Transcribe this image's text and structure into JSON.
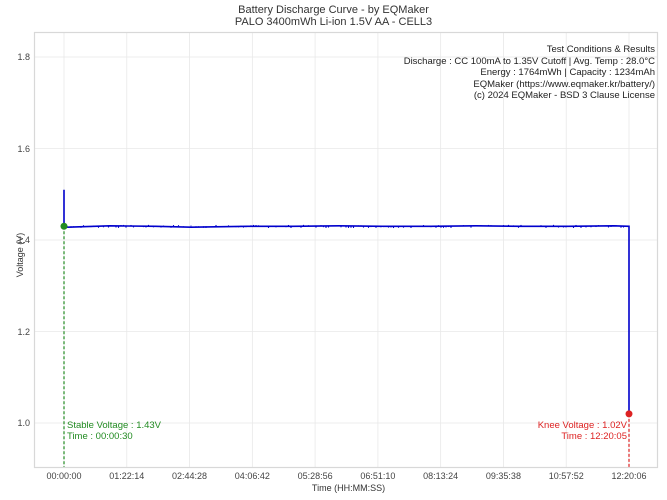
{
  "chart_data": {
    "type": "line",
    "title": "Battery Discharge Curve - by EQMaker",
    "subtitle": "PALO 3400mWh Li-ion 1.5V AA - CELL3",
    "xlabel": "Time (HH:MM:SS)",
    "ylabel": "Voltage (V)",
    "x_ticks": [
      "00:00:00",
      "01:22:14",
      "02:44:28",
      "04:06:42",
      "05:28:56",
      "06:51:10",
      "08:13:24",
      "09:35:38",
      "10:57:52",
      "12:20:06"
    ],
    "y_ticks": [
      "1.0",
      "1.2",
      "1.4",
      "1.6",
      "1.8"
    ],
    "ylim": [
      0.9,
      1.85
    ],
    "xlim_seconds": [
      -2350,
      46900
    ],
    "grid": true,
    "series": [
      {
        "name": "Voltage",
        "color": "#0000cc",
        "points_time_seconds": [
          0,
          0,
          20,
          30,
          300,
          3600,
          7200,
          10000,
          14400,
          18000,
          21600,
          25200,
          28800,
          32400,
          36000,
          39600,
          43200,
          44405,
          44405
        ],
        "points_voltage": [
          1.51,
          1.43,
          1.425,
          1.43,
          1.428,
          1.431,
          1.43,
          1.428,
          1.43,
          1.43,
          1.431,
          1.43,
          1.43,
          1.431,
          1.43,
          1.43,
          1.431,
          1.43,
          1.02
        ]
      }
    ],
    "annotations": [
      {
        "type": "point",
        "label": "Stable Voltage : 1.43V",
        "sublabel": "Time : 00:00:30",
        "time": "00:00:30",
        "voltage": 1.43,
        "color": "#228B22"
      },
      {
        "type": "point",
        "label": "Knee Voltage : 1.02V",
        "sublabel": "Time : 12:20:05",
        "time": "12:20:05",
        "voltage": 1.02,
        "color": "#dd2222"
      }
    ],
    "info_box": {
      "heading": "Test Conditions & Results",
      "lines": [
        "Discharge : CC 100mA to 1.35V Cutoff | Avg. Temp : 28.0°C",
        "Energy : 1764mWh | Capacity : 1234mAh",
        "EQMaker (https://www.eqmaker.kr/battery/)",
        "(c) 2024 EQMaker - BSD 3 Clause License"
      ]
    }
  },
  "colors": {
    "line": "#0000cc",
    "stable": "#228B22",
    "knee": "#dd2222",
    "grid": "#e8e8e8",
    "frame": "#d8d8d8"
  }
}
